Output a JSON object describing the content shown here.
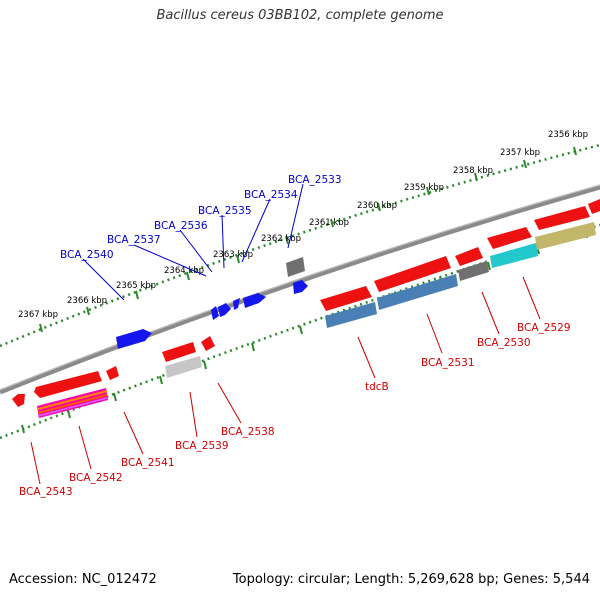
{
  "title": "Bacillus cereus 03BB102, complete genome",
  "footer": {
    "accession": "Accession: NC_012472",
    "topology": "Topology: circular; Length: 5,269,628 bp; Genes: 5,544"
  },
  "colors": {
    "backbone": "#8a8a8a",
    "ruler": "#2a8a2a",
    "forward_label": "#0000cc",
    "reverse_label": "#cc0000",
    "forward_gene": "#1515ee",
    "reverse_gene": "#ee1111",
    "gray_gene": "#707070",
    "protein_blue": "#4a7fb5",
    "protein_cyan": "#22c8cc",
    "protein_olive": "#c2b66a"
  },
  "ruler_ticks": [
    "2356 kbp",
    "2357 kbp",
    "2358 kbp",
    "2359 kbp",
    "2360 kbp",
    "2361 kbp",
    "2362 kbp",
    "2363 kbp",
    "2364 kbp",
    "2365 kbp",
    "2366 kbp",
    "2367 kbp"
  ],
  "forward_labels": [
    "BCA_2533",
    "BCA_2534",
    "BCA_2535",
    "BCA_2536",
    "BCA_2537",
    "BCA_2540"
  ],
  "reverse_labels": [
    "BCA_2529",
    "BCA_2530",
    "BCA_2531",
    "tdcB",
    "BCA_2538",
    "BCA_2539",
    "BCA_2541",
    "BCA_2542",
    "BCA_2543"
  ]
}
